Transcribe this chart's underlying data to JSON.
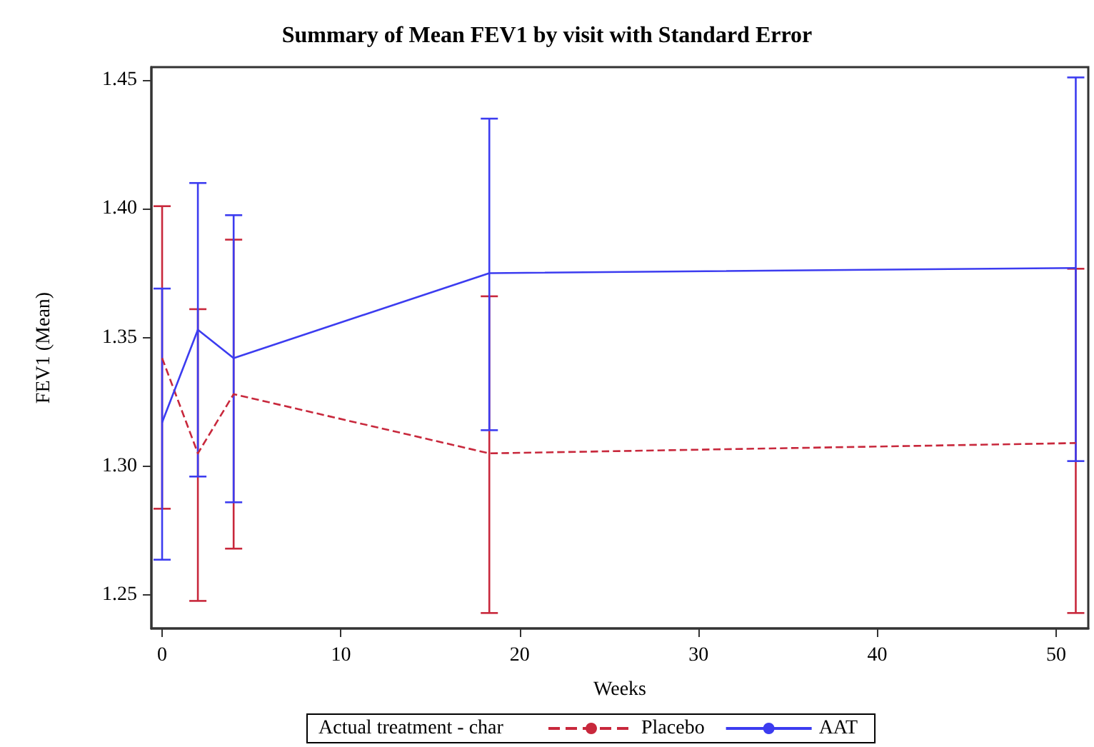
{
  "chart_data": {
    "type": "line",
    "title": "Summary of Mean FEV1 by visit with Standard Error",
    "xlabel": "Weeks",
    "ylabel": "FEV1 (Mean)",
    "legend_title": "Actual treatment - char",
    "x": [
      0,
      2,
      4,
      18.3,
      51.1
    ],
    "series": [
      {
        "name": "Placebo",
        "color": "#c8283c",
        "line_style": "dashed",
        "values": [
          1.342,
          1.305,
          1.328,
          1.305,
          1.309
        ],
        "errors": [
          [
            1.2835,
            1.401
          ],
          [
            1.2477,
            1.361
          ],
          [
            1.268,
            1.388
          ],
          [
            1.243,
            1.366
          ],
          [
            1.243,
            1.3767
          ]
        ]
      },
      {
        "name": "AAT",
        "color": "#3c3cf0",
        "line_style": "solid",
        "values": [
          1.317,
          1.353,
          1.342,
          1.375,
          1.377
        ],
        "errors": [
          [
            1.2637,
            1.369
          ],
          [
            1.296,
            1.41
          ],
          [
            1.286,
            1.3975
          ],
          [
            1.314,
            1.435
          ],
          [
            1.302,
            1.451
          ]
        ]
      }
    ],
    "xlim": [
      -0.6,
      51.8
    ],
    "xticks": [
      0,
      10,
      20,
      30,
      40,
      50
    ],
    "ylim": [
      1.237,
      1.455
    ],
    "yticks": [
      1.25,
      {
        "value": 1.3,
        "label": "1.30"
      },
      1.35,
      {
        "value": 1.4,
        "label": "1.40"
      },
      1.45
    ],
    "grid": false,
    "legend": "bottom",
    "marker": "none"
  }
}
